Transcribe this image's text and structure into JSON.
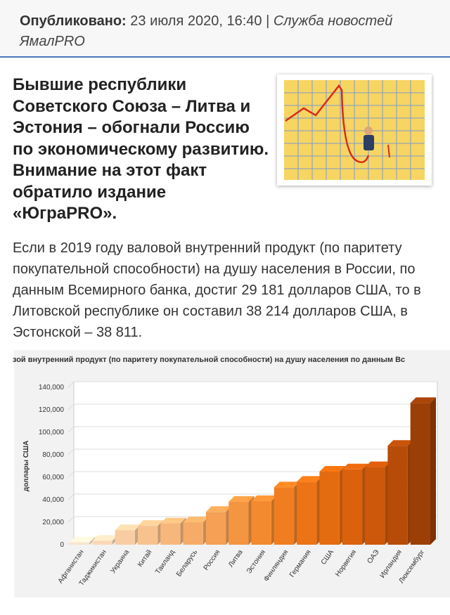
{
  "header": {
    "label": "Опубликовано:",
    "date": "23 июля 2020, 16:40 |",
    "source": "Служба новостей ЯмалPRO"
  },
  "article": {
    "title": "Бывшие республики Советского Союза – Литва и Эстония – обогнали Россию по экономическому развитию. Внимание на этот факт обратило издание «ЮграPRO».",
    "paragraph": "Если в 2019 году валовой внутренний продукт (по паритету покупательной способности) на душу населения в России, по данным Всемирного банка, достиг 29 181 долларов США, то в Литовской республике он составил 38 214 долларов США, в Эстонской – 38 811."
  },
  "chart_data": {
    "type": "bar",
    "title": "зой внутренний продукт (по паритету покупательной способности) на душу населения по данным Вс",
    "y_label": "доллары США",
    "categories": [
      "Афганистан",
      "Таджикистан",
      "Украина",
      "Китай",
      "Таиланд",
      "Беларусь",
      "Россия",
      "Литва",
      "Эстония",
      "Финляндия",
      "Германия",
      "США",
      "Норвегия",
      "ОАЭ",
      "Ирландия",
      "Люксембург"
    ],
    "values": [
      2000,
      3500,
      13000,
      16800,
      19000,
      20000,
      29181,
      38214,
      38811,
      51000,
      56000,
      65000,
      67000,
      69000,
      88000,
      126000
    ],
    "colors": [
      "#fbe3cc",
      "#fad8b8",
      "#f9cda3",
      "#f8c28f",
      "#f7b77c",
      "#f6ac68",
      "#f5a055",
      "#f49542",
      "#f38a30",
      "#f07e20",
      "#ec7416",
      "#e56b0f",
      "#db610c",
      "#cd570a",
      "#b74c08",
      "#9c3f06"
    ],
    "ylim": [
      0,
      140000
    ],
    "yticks": [
      0,
      {
        "value": 20000,
        "label": "20,000"
      },
      {
        "value": 40000,
        "label": "40,000"
      },
      {
        "value": 60000,
        "label": "60,000"
      },
      {
        "value": 80000,
        "label": "80,000"
      },
      {
        "value": 100000,
        "label": "100,000"
      },
      {
        "value": 120000,
        "label": "120,000"
      },
      {
        "value": 140000,
        "label": "140,000"
      }
    ],
    "grid": true
  }
}
